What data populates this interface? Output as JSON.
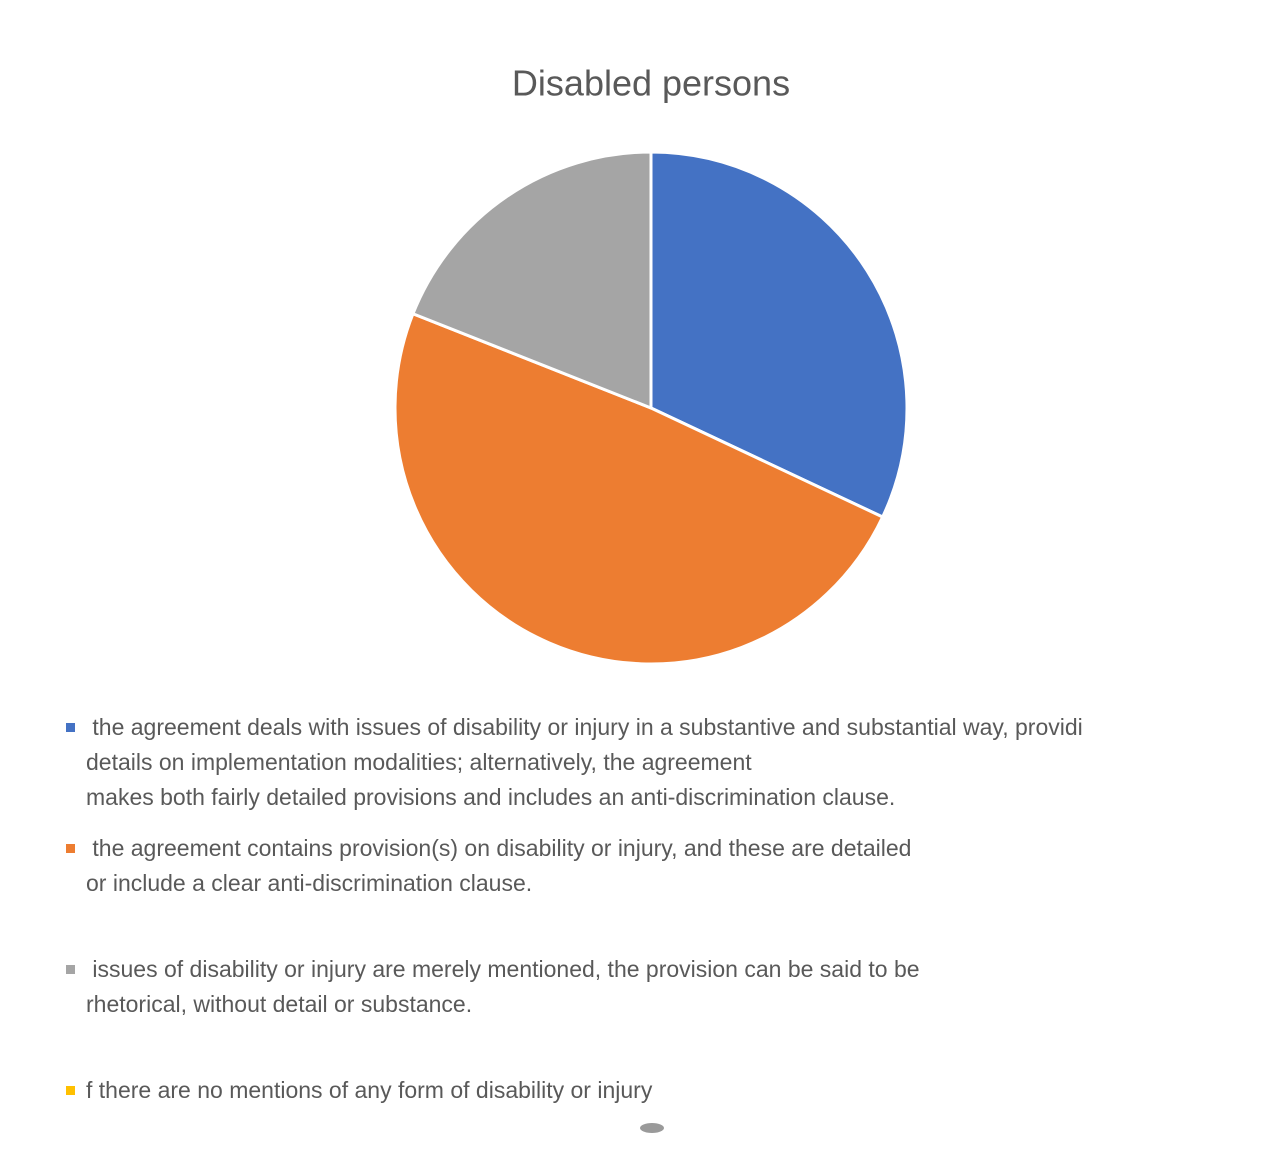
{
  "chart_data": {
    "type": "pie",
    "title": "Disabled persons",
    "categories": [
      " the agreement deals with issues of disability or injury in a substantive and substantial way, providi\ndetails on implementation modalities; alternatively, the agreement\nmakes both fairly detailed provisions and includes an anti-discrimination clause.",
      " the agreement contains provision(s) on disability or injury, and these are detailed\nor include a clear anti-discrimination clause.",
      " issues of disability or injury are merely mentioned, the provision can be said to be\nrhetorical, without detail or substance.",
      "f there are no mentions of any form of disability or injury"
    ],
    "values": [
      32,
      49,
      19,
      0
    ],
    "colors": [
      "#4472c4",
      "#ed7d31",
      "#a5a5a5",
      "#ffc000"
    ]
  }
}
